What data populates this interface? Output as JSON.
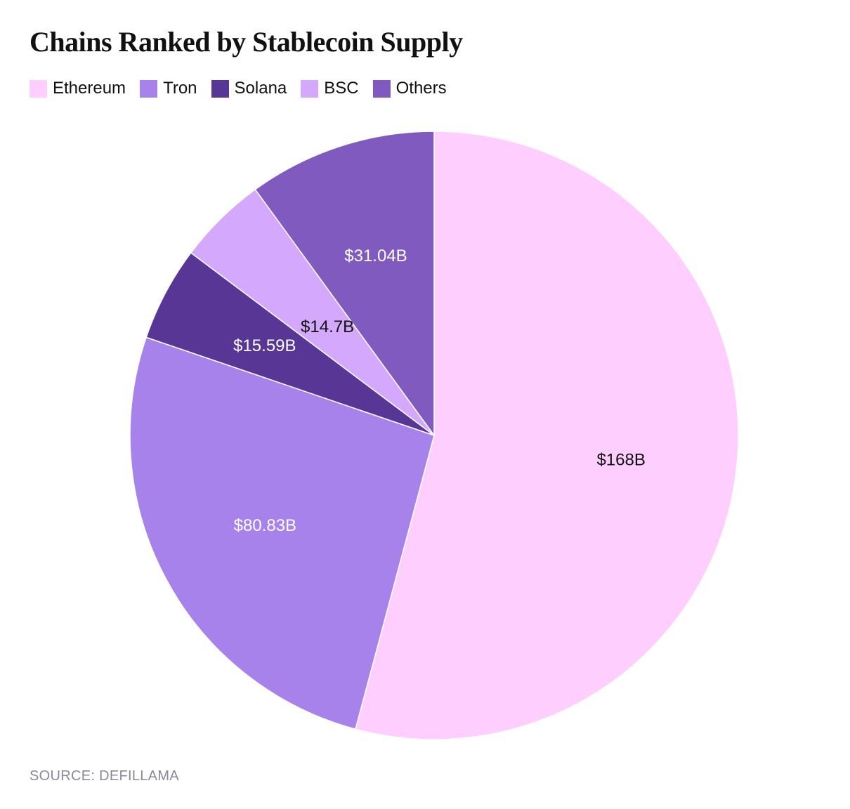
{
  "chart_data": {
    "type": "pie",
    "title": "Chains Ranked by Stablecoin Supply",
    "source": "SOURCE: DEFILLAMA",
    "legend_position": "top-left",
    "categories": [
      "Ethereum",
      "Tron",
      "Solana",
      "BSC",
      "Others"
    ],
    "values": [
      168,
      80.83,
      15.59,
      14.7,
      31.04
    ],
    "unit": "$B",
    "labels": [
      "$168B",
      "$80.83B",
      "$15.59B",
      "$14.7B",
      "$31.04B"
    ],
    "colors": [
      "#FECEFE",
      "#A782EA",
      "#573695",
      "#D4A8FC",
      "#805ABF"
    ],
    "label_colors": [
      "#111111",
      "#ffffff",
      "#ffffff",
      "#111111",
      "#ffffff"
    ],
    "start_angle": "12 o'clock",
    "direction": "clockwise"
  }
}
